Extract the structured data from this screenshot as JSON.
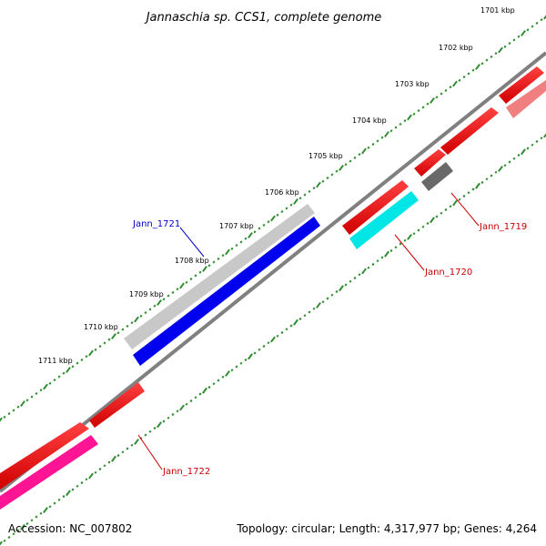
{
  "title": "Jannaschia sp. CCS1, complete genome",
  "footer": {
    "accession": "Accession: NC_007802",
    "summary": "Topology: circular; Length: 4,317,977 bp; Genes: 4,264"
  },
  "kbp_ticks": [
    "1701 kbp",
    "1702 kbp",
    "1703 kbp",
    "1704 kbp",
    "1705 kbp",
    "1706 kbp",
    "1707 kbp",
    "1708 kbp",
    "1709 kbp",
    "1710 kbp",
    "1711 kbp"
  ],
  "gene_labels": [
    {
      "name": "Jann_1719",
      "color": "#cc0000"
    },
    {
      "name": "Jann_1720",
      "color": "#cc0000"
    },
    {
      "name": "Jann_1721",
      "color": "#0000cc"
    },
    {
      "name": "Jann_1722",
      "color": "#cc0000"
    }
  ],
  "colors": {
    "backbone": "#808080",
    "tick_green": "#2e8b2e",
    "red": "#ff0000",
    "pink": "#f08080",
    "gray": "#696969",
    "cyan": "#00ffff",
    "silver": "#c8c8c8",
    "blue": "#0000ff",
    "magenta": "#ff1493"
  }
}
